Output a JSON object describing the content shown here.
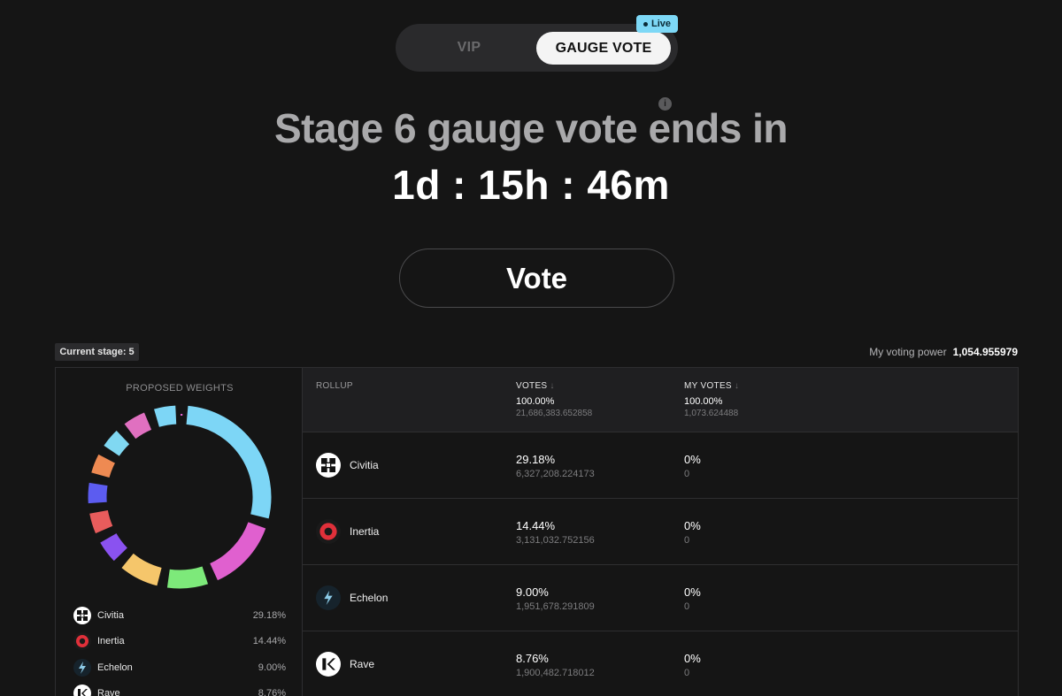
{
  "toggle": {
    "tabs": [
      {
        "label": "VIP",
        "active": false
      },
      {
        "label": "GAUGE VOTE",
        "active": true
      }
    ],
    "live_badge": "Live"
  },
  "headline": "Stage 6 gauge vote ends in",
  "info_icon_label": "i",
  "countdown": "1d : 15h : 46m",
  "vote_button": "Vote",
  "current_stage": "Current stage: 5",
  "voting_power": {
    "label": "My voting power",
    "value": "1,054.955979"
  },
  "proposed_weights": {
    "title": "PROPOSED WEIGHTS",
    "legend": [
      {
        "name": "Civitia",
        "pct": "29.18%",
        "icon": "civitia-logo"
      },
      {
        "name": "Inertia",
        "pct": "14.44%",
        "icon": "inertia-logo"
      },
      {
        "name": "Echelon",
        "pct": "9.00%",
        "icon": "echelon-logo"
      },
      {
        "name": "Rave",
        "pct": "8.76%",
        "icon": "rave-logo"
      }
    ]
  },
  "table": {
    "headers": {
      "rollup": "ROLLUP",
      "votes": "VOTES",
      "my_votes": "MY VOTES",
      "sort_arrow": "↓"
    },
    "totals": {
      "votes_pct": "100.00%",
      "votes_abs": "21,686,383.652858",
      "my_votes_pct": "100.00%",
      "my_votes_abs": "1,073.624488"
    },
    "rows": [
      {
        "name": "Civitia",
        "votes_pct": "29.18%",
        "votes_abs": "6,327,208.224173",
        "my_pct": "0%",
        "my_abs": "0"
      },
      {
        "name": "Inertia",
        "votes_pct": "14.44%",
        "votes_abs": "3,131,032.752156",
        "my_pct": "0%",
        "my_abs": "0"
      },
      {
        "name": "Echelon",
        "votes_pct": "9.00%",
        "votes_abs": "1,951,678.291809",
        "my_pct": "0%",
        "my_abs": "0"
      },
      {
        "name": "Rave",
        "votes_pct": "8.76%",
        "votes_abs": "1,900,482.718012",
        "my_pct": "0%",
        "my_abs": "0"
      }
    ]
  },
  "colors": {
    "accent_live": "#7dd8f6",
    "donut_segments": [
      "#7dd6f6",
      "#e060cf",
      "#7de97a",
      "#f5c66b",
      "#8a52f0",
      "#e85c5c",
      "#5c5cf0",
      "#ee8a52",
      "#80d8f2",
      "#e070c0"
    ]
  },
  "chart_data": {
    "type": "pie",
    "title": "PROPOSED WEIGHTS",
    "donut": true,
    "categories": [
      "Civitia",
      "Inertia",
      "Echelon",
      "Rave"
    ],
    "values": [
      29.18,
      14.44,
      9.0,
      8.76
    ]
  }
}
